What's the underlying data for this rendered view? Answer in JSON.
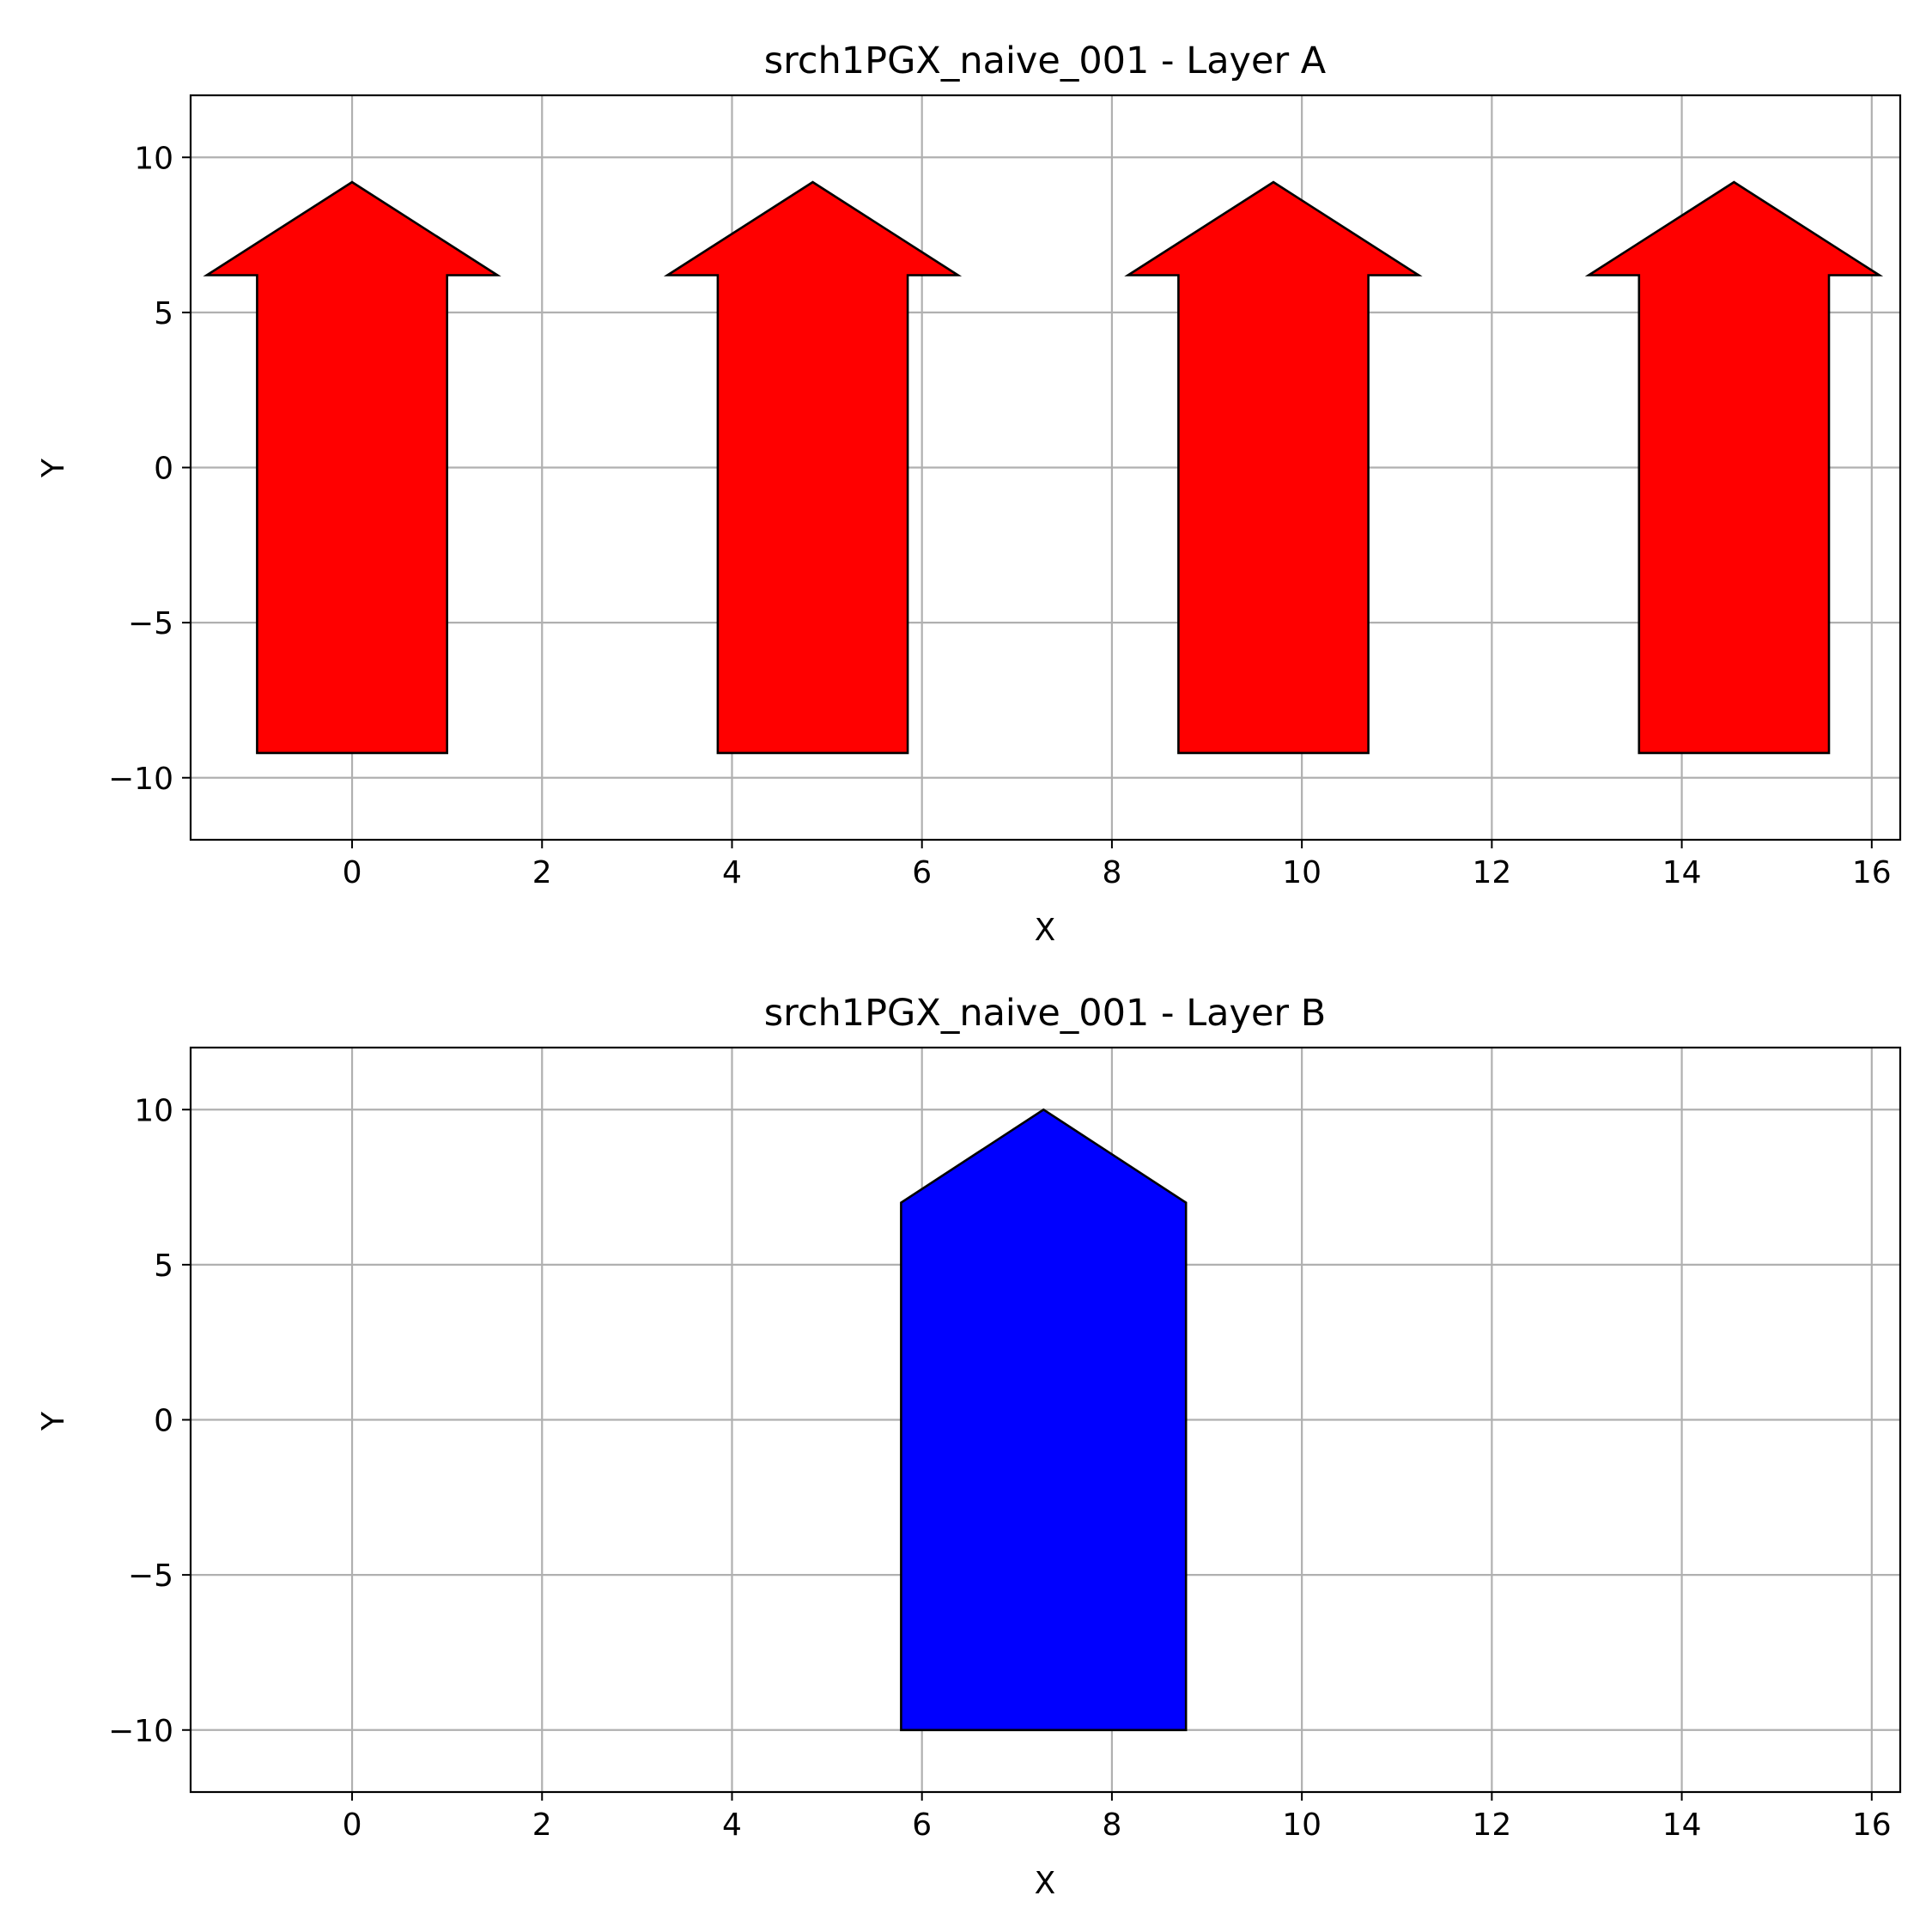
{
  "chart_data": [
    {
      "type": "polygon",
      "title": "srch1PGX_naive_001 - Layer A",
      "xlabel": "X",
      "ylabel": "Y",
      "xlim": [
        -1.7,
        16.3
      ],
      "ylim": [
        -12,
        12
      ],
      "xticks": [
        0,
        2,
        4,
        6,
        8,
        10,
        12,
        14,
        16
      ],
      "yticks": [
        -10,
        -5,
        0,
        5,
        10
      ],
      "xtick_labels": [
        "0",
        "2",
        "4",
        "6",
        "8",
        "10",
        "12",
        "14",
        "16"
      ],
      "ytick_labels": [
        "−10",
        "−5",
        "0",
        "5",
        "10"
      ],
      "grid": true,
      "shapes": [
        {
          "name": "arrow-1",
          "color": "#ff0000",
          "edge": "#000000",
          "points": [
            [
              -1,
              -9.2
            ],
            [
              1,
              -9.2
            ],
            [
              1,
              6.2
            ],
            [
              1.53,
              6.2
            ],
            [
              0,
              9.2
            ],
            [
              -1.53,
              6.2
            ],
            [
              -1,
              6.2
            ]
          ]
        },
        {
          "name": "arrow-2",
          "color": "#ff0000",
          "edge": "#000000",
          "points": [
            [
              3.85,
              -9.2
            ],
            [
              5.85,
              -9.2
            ],
            [
              5.85,
              6.2
            ],
            [
              6.38,
              6.2
            ],
            [
              4.85,
              9.2
            ],
            [
              3.32,
              6.2
            ],
            [
              3.85,
              6.2
            ]
          ]
        },
        {
          "name": "arrow-3",
          "color": "#ff0000",
          "edge": "#000000",
          "points": [
            [
              8.7,
              -9.2
            ],
            [
              10.7,
              -9.2
            ],
            [
              10.7,
              6.2
            ],
            [
              11.23,
              6.2
            ],
            [
              9.7,
              9.2
            ],
            [
              8.17,
              6.2
            ],
            [
              8.7,
              6.2
            ]
          ]
        },
        {
          "name": "arrow-4",
          "color": "#ff0000",
          "edge": "#000000",
          "points": [
            [
              13.55,
              -9.2
            ],
            [
              15.55,
              -9.2
            ],
            [
              15.55,
              6.2
            ],
            [
              16.08,
              6.2
            ],
            [
              14.55,
              9.2
            ],
            [
              13.02,
              6.2
            ],
            [
              13.55,
              6.2
            ]
          ]
        }
      ]
    },
    {
      "type": "polygon",
      "title": "srch1PGX_naive_001 - Layer B",
      "xlabel": "X",
      "ylabel": "Y",
      "xlim": [
        -1.7,
        16.3
      ],
      "ylim": [
        -12,
        12
      ],
      "xticks": [
        0,
        2,
        4,
        6,
        8,
        10,
        12,
        14,
        16
      ],
      "yticks": [
        -10,
        -5,
        0,
        5,
        10
      ],
      "xtick_labels": [
        "0",
        "2",
        "4",
        "6",
        "8",
        "10",
        "12",
        "14",
        "16"
      ],
      "ytick_labels": [
        "−10",
        "−5",
        "0",
        "5",
        "10"
      ],
      "grid": true,
      "shapes": [
        {
          "name": "pentagon",
          "color": "#0000ff",
          "edge": "#000000",
          "points": [
            [
              5.78,
              -10
            ],
            [
              8.78,
              -10
            ],
            [
              8.78,
              7
            ],
            [
              7.28,
              10
            ],
            [
              5.78,
              7
            ]
          ]
        }
      ]
    }
  ]
}
